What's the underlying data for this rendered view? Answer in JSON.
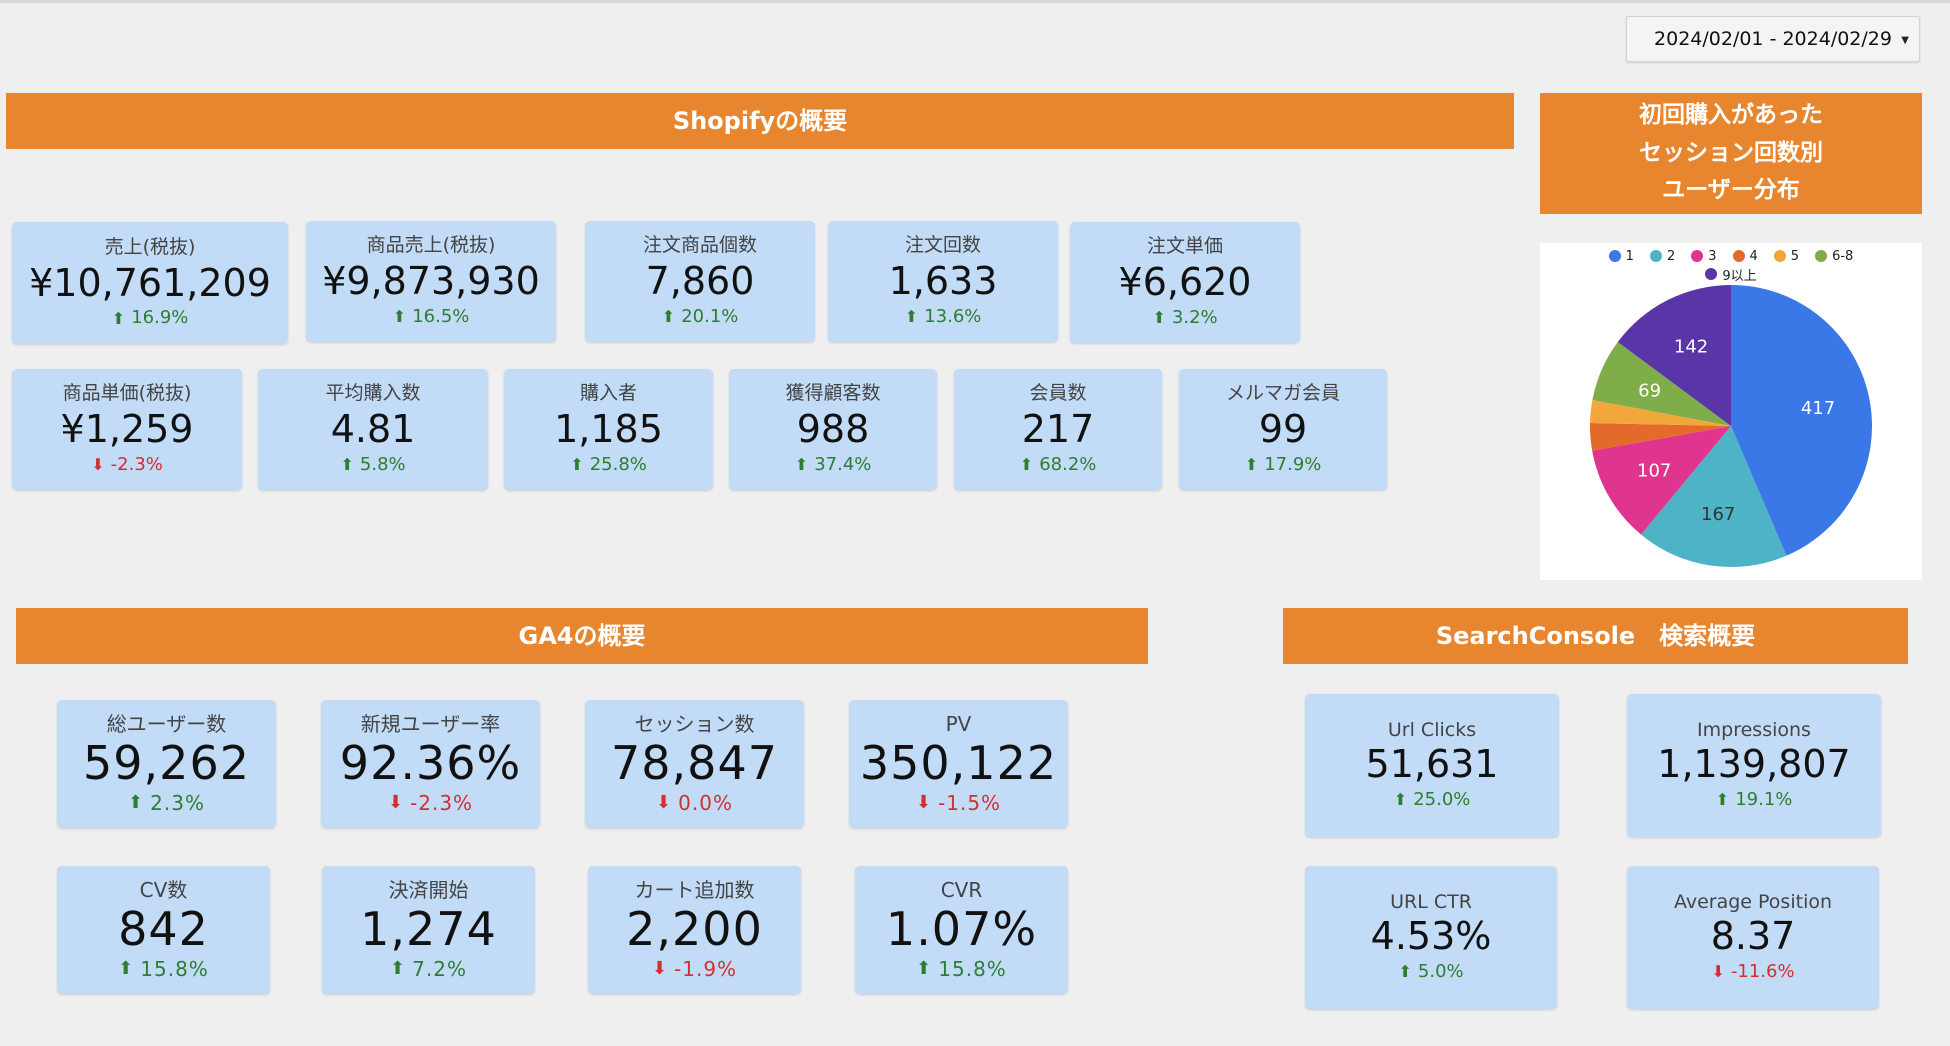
{
  "date_range": "2024/02/01 - 2024/02/29",
  "colors": {
    "banner": "#e8862f",
    "card": "#c2dcf7",
    "up": "#2e7d32",
    "down": "#d32f2f"
  },
  "shopify": {
    "title": "Shopifyの概要",
    "kpis": [
      {
        "label": "売上(税抜)",
        "value": "¥10,761,209",
        "delta": "16.9%",
        "trend": "up"
      },
      {
        "label": "商品売上(税抜)",
        "value": "¥9,873,930",
        "delta": "16.5%",
        "trend": "up"
      },
      {
        "label": "注文商品個数",
        "value": "7,860",
        "delta": "20.1%",
        "trend": "up"
      },
      {
        "label": "注文回数",
        "value": "1,633",
        "delta": "13.6%",
        "trend": "up"
      },
      {
        "label": "注文単価",
        "value": "¥6,620",
        "delta": "3.2%",
        "trend": "up"
      },
      {
        "label": "商品単価(税抜)",
        "value": "¥1,259",
        "delta": "-2.3%",
        "trend": "down"
      },
      {
        "label": "平均購入数",
        "value": "4.81",
        "delta": "5.8%",
        "trend": "up"
      },
      {
        "label": "購入者",
        "value": "1,185",
        "delta": "25.8%",
        "trend": "up"
      },
      {
        "label": "獲得顧客数",
        "value": "988",
        "delta": "37.4%",
        "trend": "up"
      },
      {
        "label": "会員数",
        "value": "217",
        "delta": "68.2%",
        "trend": "up"
      },
      {
        "label": "メルマガ会員",
        "value": "99",
        "delta": "17.9%",
        "trend": "up"
      }
    ]
  },
  "ga4": {
    "title": "GA4の概要",
    "kpis": [
      {
        "label": "総ユーザー数",
        "value": "59,262",
        "delta": "2.3%",
        "trend": "up"
      },
      {
        "label": "新規ユーザー率",
        "value": "92.36%",
        "delta": "-2.3%",
        "trend": "down"
      },
      {
        "label": "セッション数",
        "value": "78,847",
        "delta": "0.0%",
        "trend": "down"
      },
      {
        "label": "PV",
        "value": "350,122",
        "delta": "-1.5%",
        "trend": "down"
      },
      {
        "label": "CV数",
        "value": "842",
        "delta": "15.8%",
        "trend": "up"
      },
      {
        "label": "決済開始",
        "value": "1,274",
        "delta": "7.2%",
        "trend": "up"
      },
      {
        "label": "カート追加数",
        "value": "2,200",
        "delta": "-1.9%",
        "trend": "down"
      },
      {
        "label": "CVR",
        "value": "1.07%",
        "delta": "15.8%",
        "trend": "up"
      }
    ]
  },
  "search_console": {
    "title": "SearchConsole　検索概要",
    "kpis": [
      {
        "label": "Url Clicks",
        "value": "51,631",
        "delta": "25.0%",
        "trend": "up"
      },
      {
        "label": "Impressions",
        "value": "1,139,807",
        "delta": "19.1%",
        "trend": "up"
      },
      {
        "label": "URL CTR",
        "value": "4.53%",
        "delta": "5.0%",
        "trend": "up"
      },
      {
        "label": "Average Position",
        "value": "8.37",
        "delta": "-11.6%",
        "trend": "down"
      }
    ]
  },
  "pie": {
    "title": "初回購入があった\nセッション回数別\nユーザー分布"
  },
  "chart_data": {
    "type": "pie",
    "title": "初回購入があった\nセッション回数別\nユーザー分布",
    "legend_position": "top",
    "series": [
      {
        "name": "1",
        "value": 417,
        "color": "#3b78e7"
      },
      {
        "name": "2",
        "value": 167,
        "color": "#4fb3c8"
      },
      {
        "name": "3",
        "value": 107,
        "color": "#e0358f"
      },
      {
        "name": "4",
        "value": 30,
        "color": "#e46a2c"
      },
      {
        "name": "5",
        "value": 25,
        "color": "#f2a73b"
      },
      {
        "name": "6-8",
        "value": 69,
        "color": "#7ead4a"
      },
      {
        "name": "9以上",
        "value": 142,
        "color": "#5a35a8"
      }
    ],
    "labeled_slices": [
      "1",
      "2",
      "3",
      "6-8",
      "9以上"
    ]
  }
}
